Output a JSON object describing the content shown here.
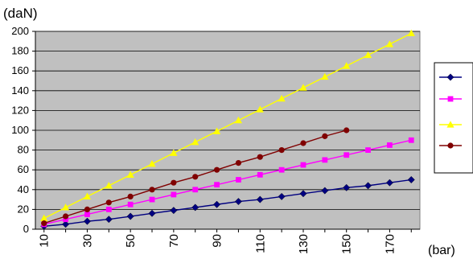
{
  "chart_data": {
    "type": "line",
    "ylabel": "(daN)",
    "xlabel": "(bar)",
    "x": [
      10,
      20,
      30,
      40,
      50,
      60,
      70,
      80,
      90,
      100,
      110,
      120,
      130,
      140,
      150,
      160,
      170,
      180
    ],
    "x_tick_labels": [
      "10",
      "30",
      "50",
      "70",
      "90",
      "110",
      "130",
      "150",
      "170"
    ],
    "ylim": [
      0,
      200
    ],
    "y_ticks": [
      0,
      20,
      40,
      60,
      80,
      100,
      120,
      140,
      160,
      180,
      200
    ],
    "grid": "horizontal",
    "legend": "right",
    "plot_background": "#c0c0c0",
    "series": [
      {
        "color": "#000080",
        "marker": "diamond",
        "x": [
          10,
          20,
          30,
          40,
          50,
          60,
          70,
          80,
          90,
          100,
          110,
          120,
          130,
          140,
          150,
          160,
          170,
          180
        ],
        "values": [
          3,
          5,
          8,
          10,
          13,
          16,
          19,
          22,
          25,
          28,
          30,
          33,
          36,
          39,
          42,
          44,
          47,
          50
        ]
      },
      {
        "color": "#ff00ff",
        "marker": "square",
        "x": [
          10,
          20,
          30,
          40,
          50,
          60,
          70,
          80,
          90,
          100,
          110,
          120,
          130,
          140,
          150,
          160,
          170,
          180
        ],
        "values": [
          5,
          10,
          15,
          20,
          25,
          30,
          35,
          40,
          45,
          50,
          55,
          60,
          65,
          70,
          75,
          80,
          85,
          90
        ]
      },
      {
        "color": "#ffff00",
        "marker": "triangle",
        "x": [
          10,
          20,
          30,
          40,
          50,
          60,
          70,
          80,
          90,
          100,
          110,
          120,
          130,
          140,
          150,
          160,
          170,
          180
        ],
        "values": [
          11,
          22,
          33,
          44,
          55,
          66,
          77,
          88,
          99,
          110,
          121,
          132,
          143,
          154,
          165,
          176,
          187,
          198
        ]
      },
      {
        "color": "#800000",
        "marker": "circle",
        "x": [
          10,
          20,
          30,
          40,
          50,
          60,
          70,
          80,
          90,
          100,
          110,
          120,
          130,
          140,
          150
        ],
        "values": [
          6,
          13,
          20,
          27,
          33,
          40,
          47,
          53,
          60,
          67,
          73,
          80,
          87,
          94,
          100
        ]
      }
    ]
  }
}
